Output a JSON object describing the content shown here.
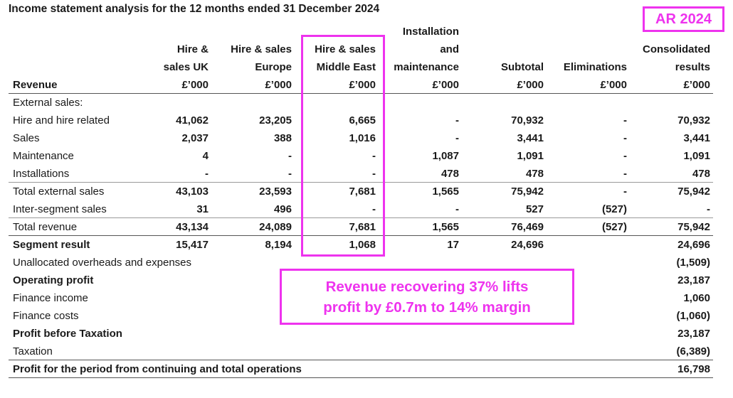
{
  "title": "Income statement analysis for the 12 months ended 31 December 2024",
  "badge": "AR 2024",
  "callout": [
    "Revenue recovering 37% lifts",
    "profit by £0.7m to 14% margin"
  ],
  "header": {
    "row_label": "Revenue",
    "columns": [
      {
        "lines": [
          "Hire &",
          "sales UK",
          "£’000"
        ]
      },
      {
        "lines": [
          "Hire & sales",
          "Europe",
          "£’000"
        ]
      },
      {
        "lines": [
          "Hire & sales",
          "Middle East",
          "£’000"
        ]
      },
      {
        "lines": [
          "Installation",
          "and",
          "maintenance",
          "£’000"
        ]
      },
      {
        "lines": [
          "Subtotal",
          "£’000"
        ]
      },
      {
        "lines": [
          "Eliminations",
          "£’000"
        ]
      },
      {
        "lines": [
          "Consolidated",
          "results",
          "£’000"
        ]
      }
    ]
  },
  "rows": [
    {
      "label": "External sales:",
      "values": [
        "",
        "",
        "",
        "",
        "",
        "",
        ""
      ]
    },
    {
      "label": "Hire and hire related",
      "values": [
        "41,062",
        "23,205",
        "6,665",
        "-",
        "70,932",
        "-",
        "70,932"
      ]
    },
    {
      "label": "Sales",
      "values": [
        "2,037",
        "388",
        "1,016",
        "-",
        "3,441",
        "-",
        "3,441"
      ]
    },
    {
      "label": "Maintenance",
      "values": [
        "4",
        "-",
        "-",
        "1,087",
        "1,091",
        "-",
        "1,091"
      ]
    },
    {
      "label": "Installations",
      "values": [
        "-",
        "-",
        "-",
        "478",
        "478",
        "-",
        "478"
      ]
    },
    {
      "label": "Total external sales",
      "values": [
        "43,103",
        "23,593",
        "7,681",
        "1,565",
        "75,942",
        "-",
        "75,942"
      ]
    },
    {
      "label": "Inter-segment sales",
      "values": [
        "31",
        "496",
        "-",
        "-",
        "527",
        "(527)",
        "-"
      ]
    },
    {
      "label": "Total revenue",
      "values": [
        "43,134",
        "24,089",
        "7,681",
        "1,565",
        "76,469",
        "(527)",
        "75,942"
      ]
    },
    {
      "label": "Segment result",
      "bold": true,
      "values": [
        "15,417",
        "8,194",
        "1,068",
        "17",
        "24,696",
        "",
        "24,696"
      ]
    },
    {
      "label": "Unallocated overheads and expenses",
      "values": [
        "",
        "",
        "",
        "",
        "",
        "",
        "(1,509)"
      ]
    },
    {
      "label": "Operating profit",
      "bold": true,
      "values": [
        "",
        "",
        "",
        "",
        "",
        "",
        "23,187"
      ]
    },
    {
      "label": "Finance income",
      "values": [
        "",
        "",
        "",
        "",
        "",
        "",
        "1,060"
      ]
    },
    {
      "label": "Finance costs",
      "values": [
        "",
        "",
        "",
        "",
        "",
        "",
        "(1,060)"
      ]
    },
    {
      "label": "Profit before Taxation",
      "bold": true,
      "values": [
        "",
        "",
        "",
        "",
        "",
        "",
        "23,187"
      ]
    },
    {
      "label": "Taxation",
      "values": [
        "",
        "",
        "",
        "",
        "",
        "",
        "(6,389)"
      ]
    },
    {
      "label": "Profit for the period from continuing and total operations",
      "bold": true,
      "values": [
        "",
        "",
        "",
        "",
        "",
        "",
        "16,798"
      ]
    }
  ]
}
